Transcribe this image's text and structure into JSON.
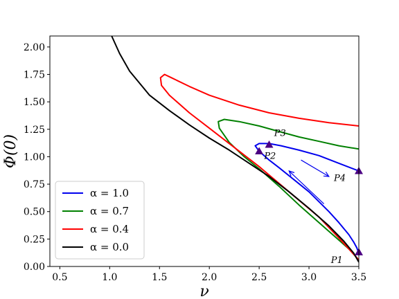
{
  "chart_data": {
    "type": "line",
    "xlabel": "ν",
    "ylabel": "Φ(0)",
    "xlim": [
      0.4,
      3.5
    ],
    "ylim": [
      0.0,
      2.1
    ],
    "x_ticks": [
      "0.5",
      "1.0",
      "1.5",
      "2.0",
      "2.5",
      "3.0",
      "3.5"
    ],
    "y_ticks": [
      "0.00",
      "0.25",
      "0.50",
      "0.75",
      "1.00",
      "1.25",
      "1.50",
      "1.75",
      "2.00"
    ],
    "grid": false,
    "legend_position": "lower-left",
    "series": [
      {
        "name": "α = 1.0",
        "color": "#0000ee",
        "points": [
          [
            3.5,
            0.87
          ],
          [
            3.3,
            0.94
          ],
          [
            3.1,
            1.01
          ],
          [
            2.9,
            1.06
          ],
          [
            2.72,
            1.1
          ],
          [
            2.6,
            1.12
          ],
          [
            2.5,
            1.12
          ],
          [
            2.46,
            1.1
          ],
          [
            2.5,
            1.05
          ],
          [
            2.6,
            0.97
          ],
          [
            2.7,
            0.9
          ],
          [
            2.85,
            0.79
          ],
          [
            3.0,
            0.68
          ],
          [
            3.1,
            0.59
          ],
          [
            3.2,
            0.5
          ],
          [
            3.3,
            0.4
          ],
          [
            3.4,
            0.29
          ],
          [
            3.45,
            0.22
          ],
          [
            3.48,
            0.17
          ],
          [
            3.5,
            0.12
          ]
        ]
      },
      {
        "name": "α = 0.7",
        "color": "#008000",
        "points": [
          [
            3.5,
            1.07
          ],
          [
            3.3,
            1.1
          ],
          [
            3.1,
            1.14
          ],
          [
            2.9,
            1.18
          ],
          [
            2.7,
            1.23
          ],
          [
            2.5,
            1.28
          ],
          [
            2.3,
            1.32
          ],
          [
            2.15,
            1.34
          ],
          [
            2.09,
            1.32
          ],
          [
            2.1,
            1.26
          ],
          [
            2.2,
            1.13
          ],
          [
            2.35,
            1.0
          ],
          [
            2.5,
            0.89
          ],
          [
            2.7,
            0.73
          ],
          [
            2.9,
            0.56
          ],
          [
            3.1,
            0.4
          ],
          [
            3.3,
            0.24
          ],
          [
            3.4,
            0.16
          ],
          [
            3.46,
            0.1
          ],
          [
            3.5,
            0.05
          ]
        ]
      },
      {
        "name": "α = 0.4",
        "color": "#ff0000",
        "points": [
          [
            3.5,
            1.28
          ],
          [
            3.2,
            1.31
          ],
          [
            2.9,
            1.35
          ],
          [
            2.6,
            1.4
          ],
          [
            2.3,
            1.47
          ],
          [
            2.0,
            1.56
          ],
          [
            1.8,
            1.64
          ],
          [
            1.62,
            1.72
          ],
          [
            1.55,
            1.75
          ],
          [
            1.51,
            1.72
          ],
          [
            1.52,
            1.65
          ],
          [
            1.6,
            1.56
          ],
          [
            1.8,
            1.4
          ],
          [
            2.0,
            1.26
          ],
          [
            2.2,
            1.12
          ],
          [
            2.5,
            0.91
          ],
          [
            2.8,
            0.68
          ],
          [
            3.1,
            0.45
          ],
          [
            3.3,
            0.26
          ],
          [
            3.45,
            0.11
          ],
          [
            3.5,
            0.06
          ]
        ]
      },
      {
        "name": "α = 0.0",
        "color": "#000000",
        "points": [
          [
            1.02,
            2.1
          ],
          [
            1.1,
            1.94
          ],
          [
            1.2,
            1.78
          ],
          [
            1.4,
            1.56
          ],
          [
            1.6,
            1.42
          ],
          [
            1.8,
            1.29
          ],
          [
            2.0,
            1.17
          ],
          [
            2.2,
            1.06
          ],
          [
            2.4,
            0.94
          ],
          [
            2.6,
            0.82
          ],
          [
            2.8,
            0.68
          ],
          [
            3.0,
            0.53
          ],
          [
            3.2,
            0.37
          ],
          [
            3.35,
            0.23
          ],
          [
            3.45,
            0.12
          ],
          [
            3.5,
            0.04
          ]
        ]
      }
    ],
    "markers": [
      {
        "label": "P1",
        "x": 3.5,
        "y": 0.13,
        "color": "#4b0082"
      },
      {
        "label": "P2",
        "x": 2.5,
        "y": 1.05,
        "color": "#4b0082"
      },
      {
        "label": "P3",
        "x": 2.6,
        "y": 1.11,
        "color": "#4b0082"
      },
      {
        "label": "P4",
        "x": 3.5,
        "y": 0.87,
        "color": "#4b0082"
      }
    ],
    "annotations": [
      {
        "text": "P1",
        "x": 3.22,
        "y": 0.03
      },
      {
        "text": "P2",
        "x": 2.55,
        "y": 0.98
      },
      {
        "text": "P3",
        "x": 2.65,
        "y": 1.19
      },
      {
        "text": "P4",
        "x": 3.25,
        "y": 0.78
      }
    ],
    "arrows": [
      {
        "from": [
          2.92,
          0.97
        ],
        "to": [
          3.2,
          0.82
        ],
        "color": "#0000ee"
      },
      {
        "from": [
          3.15,
          0.57
        ],
        "to": [
          2.8,
          0.87
        ],
        "color": "#0000ee"
      }
    ]
  }
}
